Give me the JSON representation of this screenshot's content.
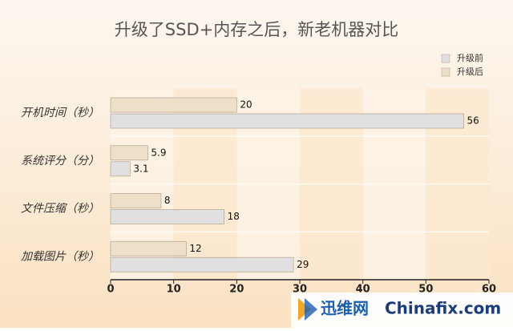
{
  "chart_data": {
    "type": "bar",
    "orientation": "horizontal",
    "title": "升级了SSD+内存之后，新老机器对比",
    "categories": [
      "开机时间（秒）",
      "系统评分（分）",
      "文件压缩（秒）",
      "加载图片（秒）"
    ],
    "series": [
      {
        "name": "升级前",
        "color": "#e0e0e0",
        "values": [
          56,
          3.1,
          18,
          29
        ]
      },
      {
        "name": "升级后",
        "color": "#eedfc8",
        "values": [
          20,
          5.9,
          8,
          12
        ]
      }
    ],
    "xlim": [
      0,
      60
    ],
    "xticks": [
      0,
      10,
      20,
      30,
      40,
      50,
      60
    ],
    "legend": "top-right",
    "watermark": [
      "迅维网",
      "Chinafix.com"
    ]
  }
}
